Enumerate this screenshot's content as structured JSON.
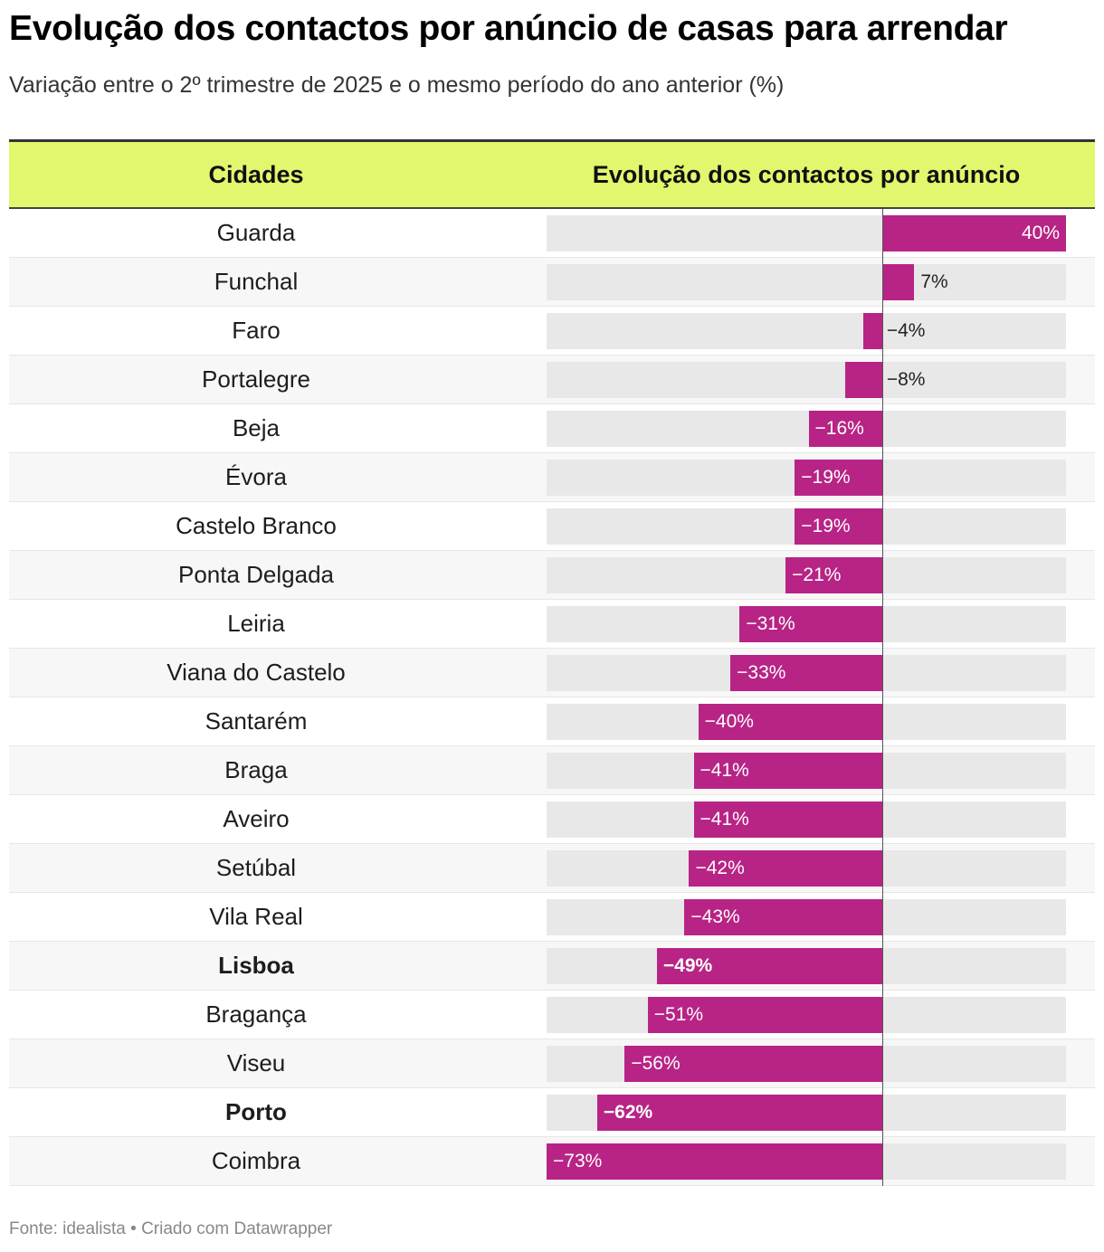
{
  "title": "Evolução dos contactos por anúncio de casas para arrendar",
  "subtitle": "Variação entre o 2º trimestre de 2025 e o mesmo período do ano anterior (%)",
  "footer": "Fonte: idealista • Criado com Datawrapper",
  "colors": {
    "bar": "#b72485",
    "track": "#e8e8e8",
    "header": "#e2f76e"
  },
  "chart_data": {
    "type": "table",
    "title": "Evolução dos contactos por anúncio de casas para arrendar",
    "subtitle": "Variação entre o 2º trimestre de 2025 e o mesmo período do ano anterior (%)",
    "columns": [
      "Cidades",
      "Evolução dos contactos por anúncio"
    ],
    "xlim": [
      -73,
      40
    ],
    "rows": [
      {
        "city": "Guarda",
        "value": 40,
        "label": "40%",
        "bold": false
      },
      {
        "city": "Funchal",
        "value": 7,
        "label": "7%",
        "bold": false
      },
      {
        "city": "Faro",
        "value": -4,
        "label": "−4%",
        "bold": false
      },
      {
        "city": "Portalegre",
        "value": -8,
        "label": "−8%",
        "bold": false
      },
      {
        "city": "Beja",
        "value": -16,
        "label": "−16%",
        "bold": false
      },
      {
        "city": "Évora",
        "value": -19,
        "label": "−19%",
        "bold": false
      },
      {
        "city": "Castelo Branco",
        "value": -19,
        "label": "−19%",
        "bold": false
      },
      {
        "city": "Ponta Delgada",
        "value": -21,
        "label": "−21%",
        "bold": false
      },
      {
        "city": "Leiria",
        "value": -31,
        "label": "−31%",
        "bold": false
      },
      {
        "city": "Viana do Castelo",
        "value": -33,
        "label": "−33%",
        "bold": false
      },
      {
        "city": "Santarém",
        "value": -40,
        "label": "−40%",
        "bold": false
      },
      {
        "city": "Braga",
        "value": -41,
        "label": "−41%",
        "bold": false
      },
      {
        "city": "Aveiro",
        "value": -41,
        "label": "−41%",
        "bold": false
      },
      {
        "city": "Setúbal",
        "value": -42,
        "label": "−42%",
        "bold": false
      },
      {
        "city": "Vila Real",
        "value": -43,
        "label": "−43%",
        "bold": false
      },
      {
        "city": "Lisboa",
        "value": -49,
        "label": "−49%",
        "bold": true
      },
      {
        "city": "Bragança",
        "value": -51,
        "label": "−51%",
        "bold": false
      },
      {
        "city": "Viseu",
        "value": -56,
        "label": "−56%",
        "bold": false
      },
      {
        "city": "Porto",
        "value": -62,
        "label": "−62%",
        "bold": true
      },
      {
        "city": "Coimbra",
        "value": -73,
        "label": "−73%",
        "bold": false
      }
    ]
  }
}
